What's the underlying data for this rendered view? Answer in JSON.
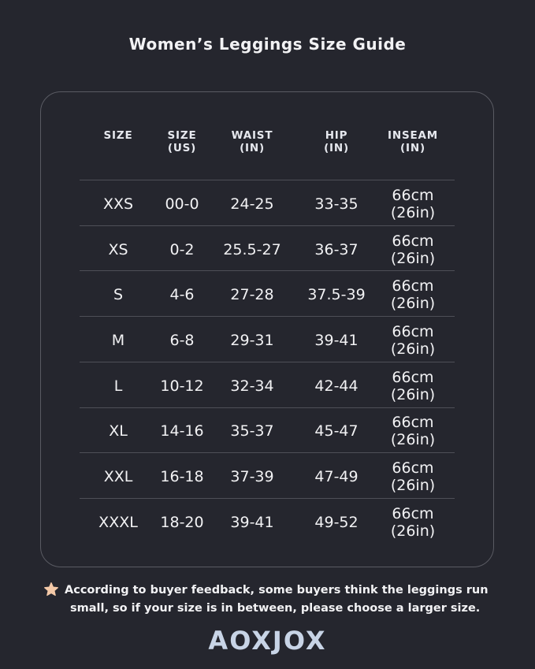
{
  "title": "Women’s Leggings Size Guide",
  "table": {
    "headers": [
      {
        "line1": "SIZE",
        "line2": ""
      },
      {
        "line1": "SIZE",
        "line2": "(US)"
      },
      {
        "line1": "WAIST",
        "line2": "(IN)"
      },
      {
        "line1": "HIP",
        "line2": "(IN)"
      },
      {
        "line1": "INSEAM",
        "line2": "(IN)"
      }
    ],
    "rows": [
      {
        "size": "XXS",
        "us": "00-0",
        "waist": "24-25",
        "hip": "33-35",
        "inseam1": "66cm",
        "inseam2": "(26in)"
      },
      {
        "size": "XS",
        "us": "0-2",
        "waist": "25.5-27",
        "hip": "36-37",
        "inseam1": "66cm",
        "inseam2": "(26in)"
      },
      {
        "size": "S",
        "us": "4-6",
        "waist": "27-28",
        "hip": "37.5-39",
        "inseam1": "66cm",
        "inseam2": "(26in)"
      },
      {
        "size": "M",
        "us": "6-8",
        "waist": "29-31",
        "hip": "39-41",
        "inseam1": "66cm",
        "inseam2": "(26in)"
      },
      {
        "size": "L",
        "us": "10-12",
        "waist": "32-34",
        "hip": "42-44",
        "inseam1": "66cm",
        "inseam2": "(26in)"
      },
      {
        "size": "XL",
        "us": "14-16",
        "waist": "35-37",
        "hip": "45-47",
        "inseam1": "66cm",
        "inseam2": "(26in)"
      },
      {
        "size": "XXL",
        "us": "16-18",
        "waist": "37-39",
        "hip": "47-49",
        "inseam1": "66cm",
        "inseam2": "(26in)"
      },
      {
        "size": "XXXL",
        "us": "18-20",
        "waist": "39-41",
        "hip": "49-52",
        "inseam1": "66cm",
        "inseam2": "(26in)"
      }
    ]
  },
  "note": {
    "icon": "star-icon",
    "line1": "According to buyer feedback, some buyers think the leggings run",
    "line2": "small, so if your size is in between, please choose a larger size."
  },
  "brand": "AOXJOX",
  "colors": {
    "background": "#25262e",
    "star": "#f4c9a8",
    "logo": "#c8d4e6"
  }
}
